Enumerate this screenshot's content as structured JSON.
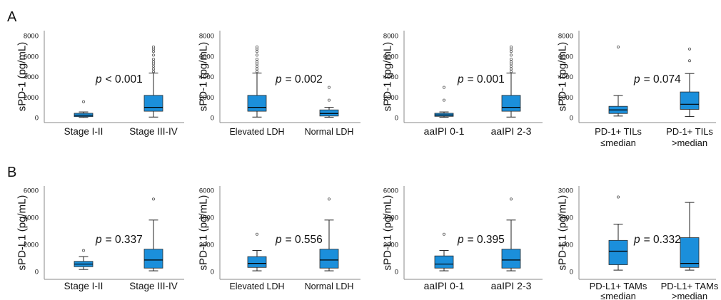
{
  "figure": {
    "panel_labels": [
      "A",
      "B"
    ]
  },
  "style": {
    "box_fill": "#1b8fdb",
    "box_stroke": "#2b2b2b",
    "median_color": "#000000",
    "whisker_color": "#222222",
    "outlier_stroke": "#555555",
    "axis_color": "#8a8a8a",
    "text_color": "#111111"
  },
  "chart_data": [
    {
      "type": "box",
      "grid": false,
      "ylabel": "sPD-1 (pg/mL)",
      "ylim": [
        0,
        8000
      ],
      "yticks": [
        0,
        2000,
        4000,
        6000,
        8000
      ],
      "categories": [
        [
          "Stage I-II"
        ],
        [
          "Stage III-IV"
        ]
      ],
      "boxes": [
        {
          "min": 20,
          "q1": 90,
          "median": 230,
          "q3": 420,
          "max": 550,
          "outliers": [
            1550
          ]
        },
        {
          "min": 50,
          "q1": 620,
          "median": 1000,
          "q3": 2170,
          "max": 4350,
          "outliers": [
            4500,
            4750,
            5000,
            5250,
            5450,
            5700,
            6100,
            6450,
            6700,
            6900
          ]
        }
      ],
      "annotation": {
        "symbol": "p",
        "value": "< 0.001"
      }
    },
    {
      "type": "box",
      "grid": false,
      "ylabel": "sPD-1 (pg/mL)",
      "ylim": [
        0,
        8000
      ],
      "yticks": [
        0,
        2000,
        4000,
        6000,
        8000
      ],
      "categories": [
        [
          "Elevated LDH"
        ],
        [
          "Normal LDH"
        ]
      ],
      "boxes": [
        {
          "min": 50,
          "q1": 620,
          "median": 1000,
          "q3": 2170,
          "max": 4350,
          "outliers": [
            4500,
            4750,
            5000,
            5250,
            5450,
            5700,
            6100,
            6450,
            6700,
            6900
          ]
        },
        {
          "min": 30,
          "q1": 150,
          "median": 400,
          "q3": 750,
          "max": 1000,
          "outliers": [
            1700,
            2950
          ]
        }
      ],
      "annotation": {
        "symbol": "p",
        "value": "= 0.002"
      }
    },
    {
      "type": "box",
      "grid": false,
      "ylabel": "sPD-1 (pg/mL)",
      "ylim": [
        0,
        8000
      ],
      "yticks": [
        0,
        2000,
        4000,
        6000,
        8000
      ],
      "categories": [
        [
          "aaIPI 0-1"
        ],
        [
          "aaIPI 2-3"
        ]
      ],
      "boxes": [
        {
          "min": 30,
          "q1": 120,
          "median": 250,
          "q3": 420,
          "max": 550,
          "outliers": [
            1700,
            2950
          ]
        },
        {
          "min": 50,
          "q1": 620,
          "median": 1000,
          "q3": 2170,
          "max": 4350,
          "outliers": [
            4500,
            4750,
            5000,
            5250,
            5450,
            5700,
            6100,
            6450,
            6700,
            6900
          ]
        }
      ],
      "annotation": {
        "symbol": "p",
        "value": "= 0.001"
      }
    },
    {
      "type": "box",
      "grid": false,
      "ylabel": "sPD-1 (pg/mL)",
      "ylim": [
        0,
        8000
      ],
      "yticks": [
        0,
        2000,
        4000,
        6000,
        8000
      ],
      "categories": [
        [
          "PD-1+ TILs",
          "≤median"
        ],
        [
          "PD-1+ TILs",
          ">median"
        ]
      ],
      "boxes": [
        {
          "min": 150,
          "q1": 400,
          "median": 750,
          "q3": 1100,
          "max": 2150,
          "outliers": [
            6900
          ]
        },
        {
          "min": 100,
          "q1": 800,
          "median": 1300,
          "q3": 2500,
          "max": 4300,
          "outliers": [
            5550,
            6700
          ]
        }
      ],
      "annotation": {
        "symbol": "p",
        "value": "= 0.074"
      }
    },
    {
      "type": "box",
      "grid": false,
      "ylabel": "sPD-L1 (pg/mL)",
      "ylim": [
        0,
        6000
      ],
      "yticks": [
        0,
        2000,
        4000,
        6000
      ],
      "categories": [
        [
          "Stage I-II"
        ],
        [
          "Stage III-IV"
        ]
      ],
      "boxes": [
        {
          "min": 150,
          "q1": 350,
          "median": 550,
          "q3": 750,
          "max": 1100,
          "outliers": [
            1550
          ]
        },
        {
          "min": 50,
          "q1": 250,
          "median": 850,
          "q3": 1650,
          "max": 3800,
          "outliers": [
            5350
          ]
        }
      ],
      "annotation": {
        "symbol": "p",
        "value": "= 0.337"
      }
    },
    {
      "type": "box",
      "grid": false,
      "ylabel": "sPD-L1 (pg/mL)",
      "ylim": [
        0,
        6000
      ],
      "yticks": [
        0,
        2000,
        4000,
        6000
      ],
      "categories": [
        [
          "Elevated LDH"
        ],
        [
          "Normal LDH"
        ]
      ],
      "boxes": [
        {
          "min": 50,
          "q1": 300,
          "median": 600,
          "q3": 1100,
          "max": 1550,
          "outliers": [
            2750
          ]
        },
        {
          "min": 50,
          "q1": 250,
          "median": 850,
          "q3": 1650,
          "max": 3800,
          "outliers": [
            5350
          ]
        }
      ],
      "annotation": {
        "symbol": "p",
        "value": "= 0.556"
      }
    },
    {
      "type": "box",
      "grid": false,
      "ylabel": "sPD-L1 (pg/mL)",
      "ylim": [
        0,
        6000
      ],
      "yticks": [
        0,
        2000,
        4000,
        6000
      ],
      "categories": [
        [
          "aaIPI 0-1"
        ],
        [
          "aaIPI 2-3"
        ]
      ],
      "boxes": [
        {
          "min": 50,
          "q1": 250,
          "median": 550,
          "q3": 1150,
          "max": 1550,
          "outliers": [
            2750
          ]
        },
        {
          "min": 50,
          "q1": 250,
          "median": 850,
          "q3": 1650,
          "max": 3800,
          "outliers": [
            5350
          ]
        }
      ],
      "annotation": {
        "symbol": "p",
        "value": "= 0.395"
      }
    },
    {
      "type": "box",
      "grid": false,
      "ylabel": "sPD-L1 (pg/mL)",
      "ylim": [
        0,
        3000
      ],
      "yticks": [
        0,
        1000,
        2000,
        3000
      ],
      "categories": [
        [
          "PD-L1+ TAMs",
          "≤median"
        ],
        [
          "PD-L1+ TAMs",
          ">median"
        ]
      ],
      "boxes": [
        {
          "min": 50,
          "q1": 250,
          "median": 750,
          "q3": 1150,
          "max": 1750,
          "outliers": [
            2750
          ]
        },
        {
          "min": 50,
          "q1": 150,
          "median": 300,
          "q3": 1250,
          "max": 2550,
          "outliers": []
        }
      ],
      "annotation": {
        "symbol": "p",
        "value": "= 0.332"
      }
    }
  ]
}
